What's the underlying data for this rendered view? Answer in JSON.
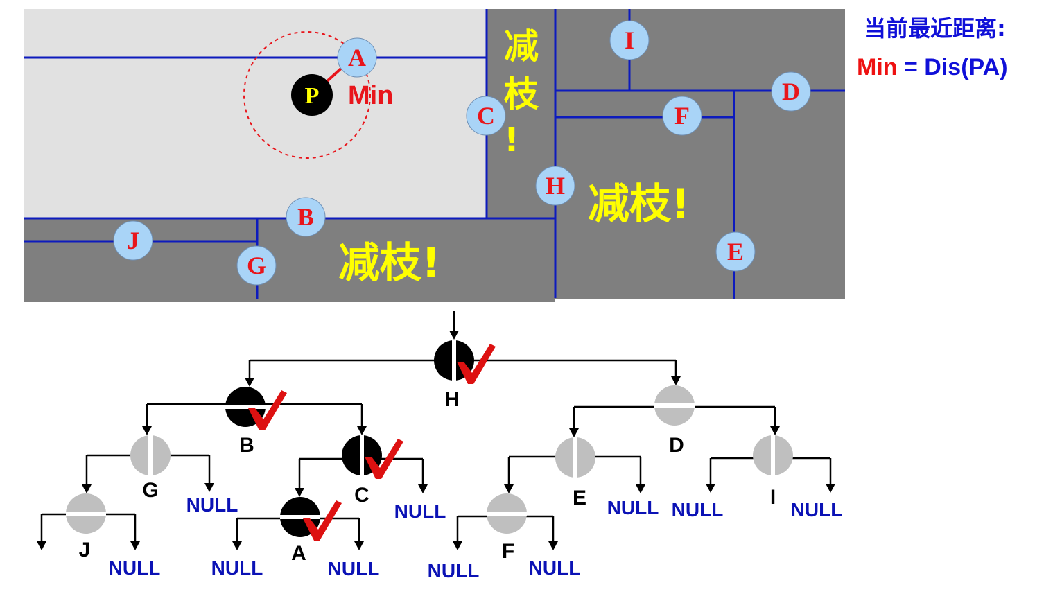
{
  "header": {
    "title": "当前最近距离:",
    "formula_min": "Min",
    "formula_eq": " = ",
    "formula_dis": "Dis(PA)"
  },
  "colors": {
    "region_light": "#e1e1e1",
    "region_dark": "#7f7f7f",
    "split_line": "#0d1bbd",
    "node_fill": "#a9d4f7",
    "node_label": "#e8151b",
    "prune_text": "#ffff00",
    "visited_node": "#000000",
    "pruned_node": "#bfbfbf",
    "check_mark": "#dd1111",
    "null_text": "#0b12b5"
  },
  "partition": {
    "query_point": "P",
    "min_label": "Min",
    "prune_label_vertical": [
      "减",
      "枝",
      "!"
    ],
    "prune_label": "减枝!",
    "nodes": [
      "A",
      "B",
      "C",
      "D",
      "E",
      "F",
      "G",
      "H",
      "I",
      "J"
    ]
  },
  "tree": {
    "nodes": [
      {
        "id": "H",
        "state": "visited"
      },
      {
        "id": "B",
        "state": "visited"
      },
      {
        "id": "D",
        "state": "pruned"
      },
      {
        "id": "G",
        "state": "pruned"
      },
      {
        "id": "C",
        "state": "visited"
      },
      {
        "id": "E",
        "state": "pruned"
      },
      {
        "id": "I",
        "state": "pruned"
      },
      {
        "id": "J",
        "state": "pruned"
      },
      {
        "id": "A",
        "state": "visited"
      },
      {
        "id": "F",
        "state": "pruned"
      }
    ],
    "null_label": "NULL"
  }
}
